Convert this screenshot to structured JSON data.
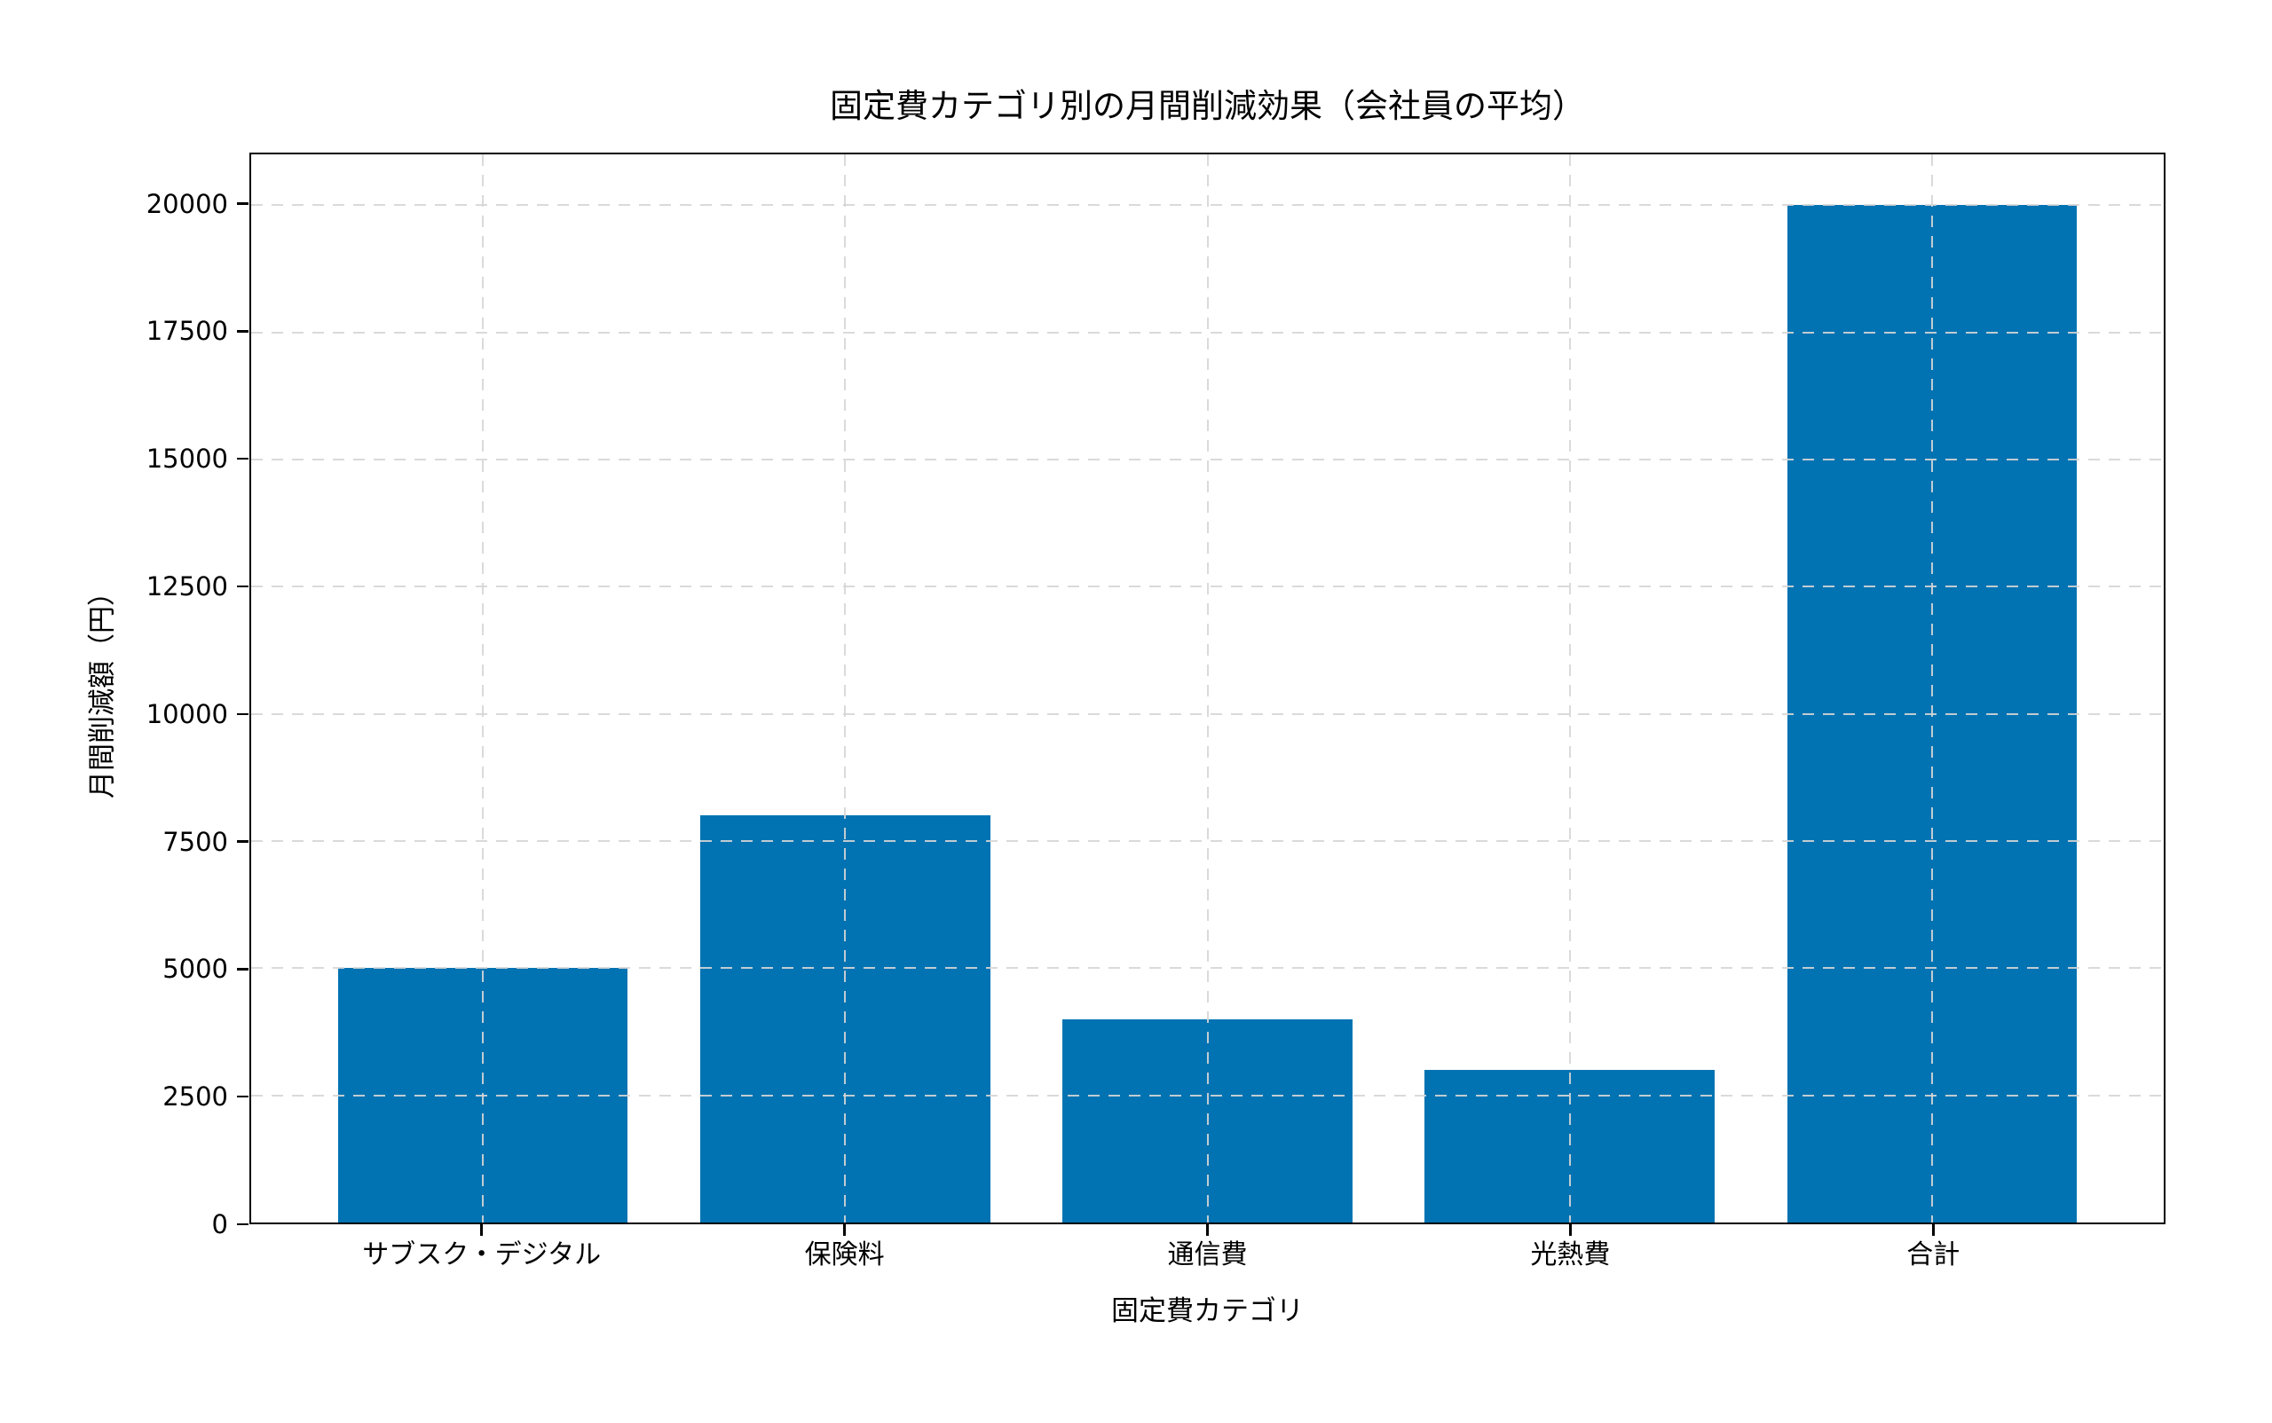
{
  "chart_data": {
    "type": "bar",
    "title": "固定費カテゴリ別の月間削減効果（会社員の平均）",
    "xlabel": "固定費カテゴリ",
    "ylabel": "月間削減額（円）",
    "categories": [
      "サブスク・デジタル",
      "保険料",
      "通信費",
      "光熱費",
      "合計"
    ],
    "values": [
      5000,
      8000,
      4000,
      3000,
      20000
    ],
    "y_ticks": [
      "0",
      "2500",
      "5000",
      "7500",
      "10000",
      "12500",
      "15000",
      "17500",
      "20000"
    ],
    "ylim": [
      0,
      21000
    ],
    "bar_color": "#0173b2",
    "grid": "dashed",
    "legend": "none"
  }
}
